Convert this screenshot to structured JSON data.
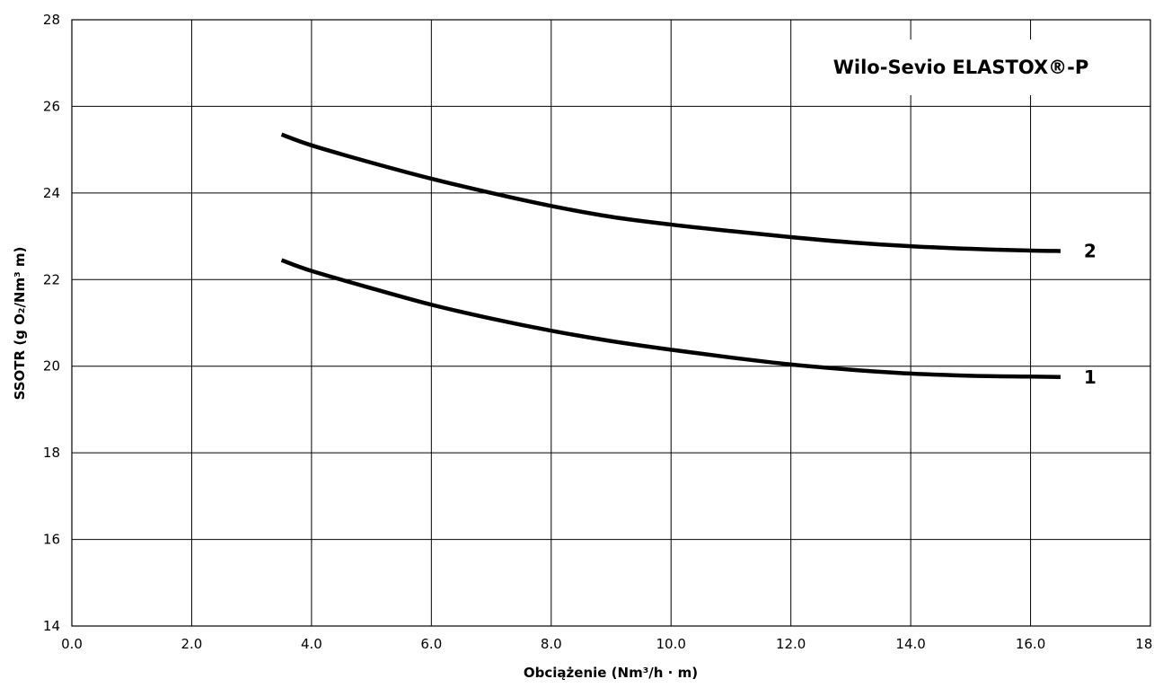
{
  "chart_data": {
    "type": "line",
    "title": "Wilo-Sevio ELASTOX®-P",
    "xlabel": "Obciążenie (Nm³/h · m)",
    "ylabel": "SSOTR (g O₂/Nm³ m)",
    "xlim": [
      0,
      18
    ],
    "ylim": [
      14,
      28
    ],
    "x_ticks": [
      "0.0",
      "2.0",
      "4.0",
      "6.0",
      "8.0",
      "10.0",
      "12.0",
      "14.0",
      "16.0",
      "18.0"
    ],
    "y_ticks": [
      "14",
      "16",
      "18",
      "20",
      "22",
      "24",
      "26",
      "28"
    ],
    "grid": true,
    "legend_position": "top-right",
    "series": [
      {
        "name": "1",
        "x": [
          3.5,
          4.0,
          5.0,
          6.0,
          7.0,
          8.0,
          9.0,
          10.0,
          11.0,
          12.0,
          13.0,
          14.0,
          15.0,
          16.0,
          16.5
        ],
        "values": [
          22.45,
          22.2,
          21.8,
          21.42,
          21.1,
          20.82,
          20.58,
          20.38,
          20.2,
          20.04,
          19.92,
          19.83,
          19.78,
          19.76,
          19.75
        ]
      },
      {
        "name": "2",
        "x": [
          3.5,
          4.0,
          5.0,
          6.0,
          7.0,
          8.0,
          9.0,
          10.0,
          11.0,
          12.0,
          13.0,
          14.0,
          15.0,
          16.0,
          16.5
        ],
        "values": [
          25.35,
          25.1,
          24.7,
          24.33,
          24.0,
          23.7,
          23.45,
          23.27,
          23.12,
          22.98,
          22.86,
          22.77,
          22.71,
          22.67,
          22.66
        ]
      }
    ]
  }
}
